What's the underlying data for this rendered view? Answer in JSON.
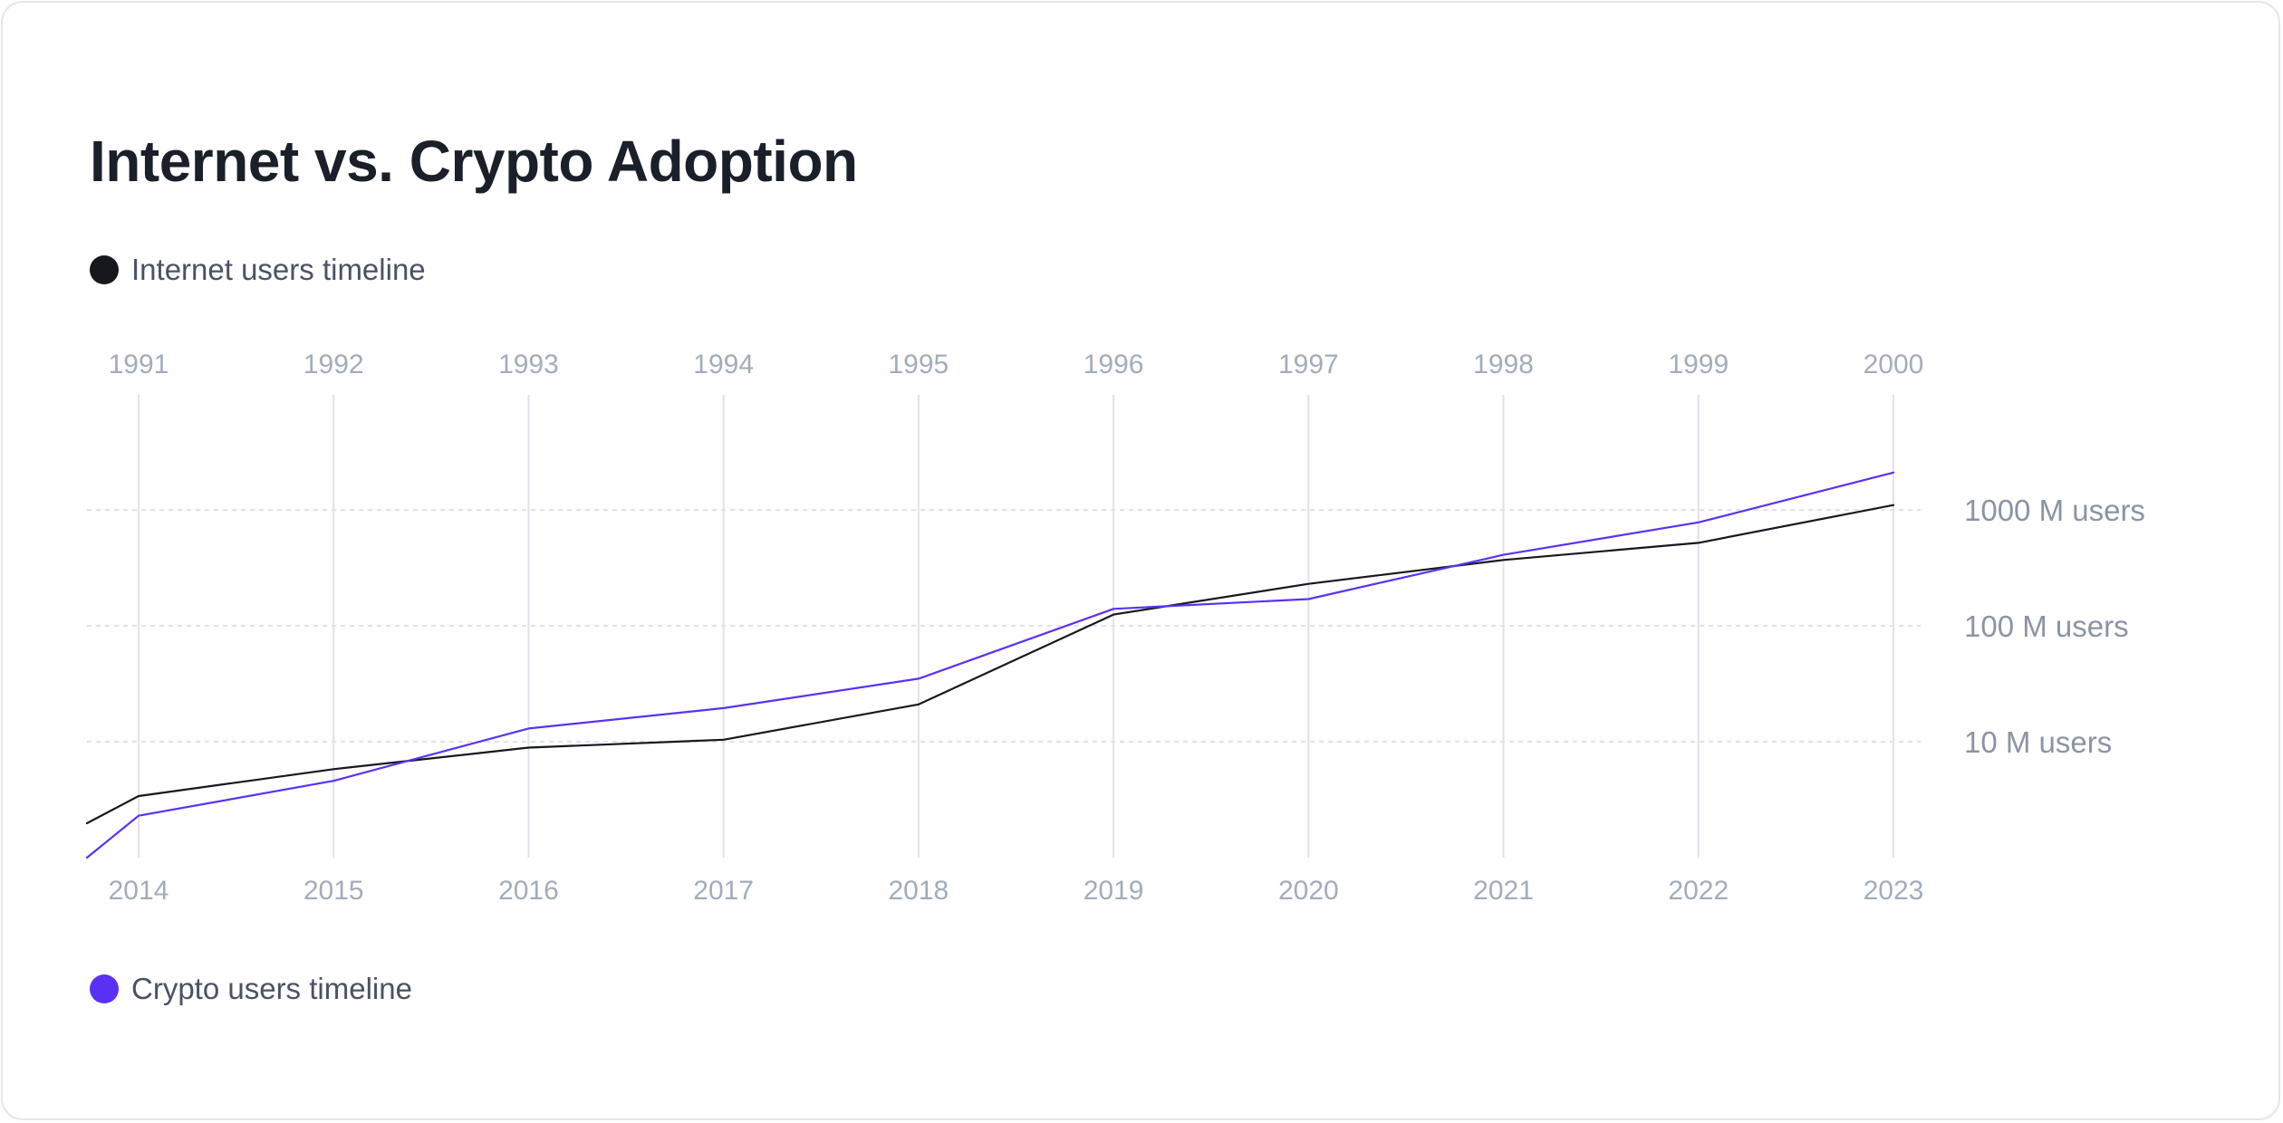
{
  "title": "Internet vs. Crypto Adoption",
  "legend": [
    {
      "label": "Internet users timeline",
      "color": "#16181d"
    },
    {
      "label": "Crypto users timeline",
      "color": "#5a31f4"
    }
  ],
  "chart_data": {
    "type": "line",
    "title": "Internet vs. Crypto Adoption",
    "x_top": [
      "1991",
      "1992",
      "1993",
      "1994",
      "1995",
      "1996",
      "1997",
      "1998",
      "1999",
      "2000"
    ],
    "x_bottom": [
      "2014",
      "2015",
      "2016",
      "2017",
      "2018",
      "2019",
      "2020",
      "2021",
      "2022",
      "2023"
    ],
    "y_scale": "log",
    "y_ticks": [
      {
        "value": 1000,
        "label": "1000 M users"
      },
      {
        "value": 100,
        "label": "100 M users"
      },
      {
        "value": 10,
        "label": "10 M users"
      }
    ],
    "y_unit": "M users",
    "ylim": [
      1,
      3000
    ],
    "grid": true,
    "series": [
      {
        "name": "Internet users timeline",
        "axis": "top",
        "color": "#16181d",
        "values": [
          3.4,
          5.8,
          8.9,
          10.4,
          21,
          125,
          230,
          370,
          520,
          1100
        ]
      },
      {
        "name": "Crypto users timeline",
        "axis": "bottom",
        "color": "#5a31f4",
        "values": [
          2.3,
          4.6,
          13,
          19.5,
          35,
          140,
          170,
          410,
          780,
          2100
        ]
      }
    ]
  }
}
